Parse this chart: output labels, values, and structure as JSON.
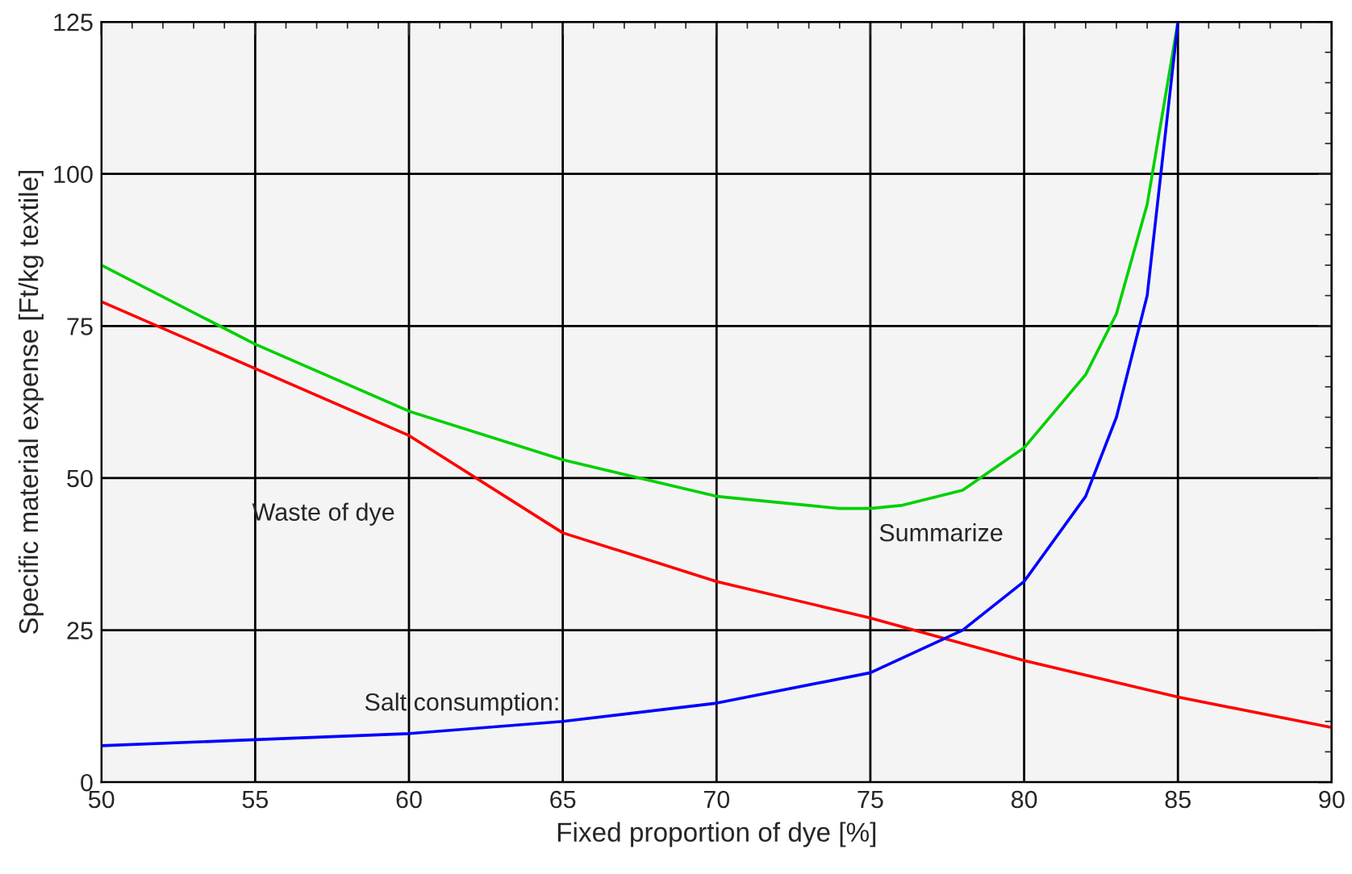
{
  "chart_data": {
    "type": "line",
    "xlabel": "Fixed proportion of dye [%]",
    "ylabel": "Specific material expense [Ft/kg textile]",
    "xlim": [
      50,
      90
    ],
    "xticks": [
      50,
      55,
      60,
      65,
      70,
      75,
      80,
      85,
      90
    ],
    "ylim": [
      0,
      125
    ],
    "yticks": [
      0,
      25,
      50,
      75,
      100,
      125
    ],
    "grid": true,
    "legend": false,
    "series": [
      {
        "name": "Waste of dye",
        "color": "#ff0000",
        "x": [
          50,
          55,
          60,
          65,
          70,
          75,
          80,
          85,
          90
        ],
        "values": [
          79,
          68,
          57,
          41,
          33,
          27,
          20,
          14,
          9
        ]
      },
      {
        "name": "Summarize",
        "color": "#00d000",
        "x": [
          50,
          55,
          60,
          65,
          70,
          72,
          74,
          75,
          76,
          78,
          80,
          82,
          83,
          84,
          85
        ],
        "values": [
          85,
          72,
          61,
          53,
          47,
          46,
          45,
          45,
          45.5,
          48,
          55,
          67,
          77,
          95,
          125
        ]
      },
      {
        "name": "Salt consumption:",
        "color": "#0000ff",
        "x": [
          50,
          55,
          60,
          65,
          70,
          75,
          78,
          80,
          82,
          83,
          84,
          85
        ],
        "values": [
          6,
          7,
          8,
          10,
          13,
          18,
          25,
          33,
          47,
          60,
          80,
          125
        ]
      }
    ]
  }
}
